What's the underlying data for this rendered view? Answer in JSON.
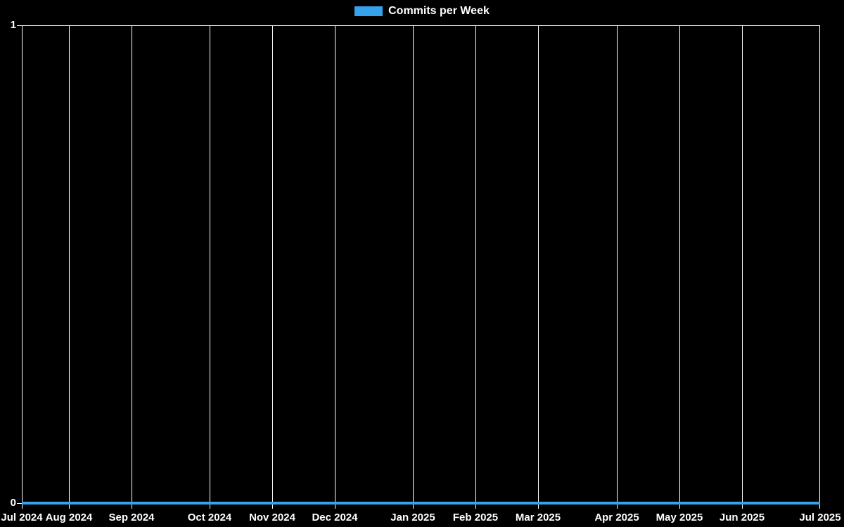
{
  "legend": {
    "label": "Commits per Week",
    "swatch_color": "#36A2EB"
  },
  "chart_data": {
    "type": "line",
    "title": "",
    "xlabel": "",
    "ylabel": "",
    "ylim": [
      0,
      1
    ],
    "y_ticks": [
      0,
      1
    ],
    "x_unit": "week",
    "total_week_intervals": 51,
    "x_ticks": [
      {
        "label": "Jul 2024",
        "week": 0
      },
      {
        "label": "Aug 2024",
        "week": 3
      },
      {
        "label": "Sep 2024",
        "week": 7
      },
      {
        "label": "Oct 2024",
        "week": 12
      },
      {
        "label": "Nov 2024",
        "week": 16
      },
      {
        "label": "Dec 2024",
        "week": 20
      },
      {
        "label": "Jan 2025",
        "week": 25
      },
      {
        "label": "Feb 2025",
        "week": 29
      },
      {
        "label": "Mar 2025",
        "week": 33
      },
      {
        "label": "Apr 2025",
        "week": 38
      },
      {
        "label": "May 2025",
        "week": 42
      },
      {
        "label": "Jun 2025",
        "week": 46
      },
      {
        "label": "Jul 2025",
        "week": 51
      }
    ],
    "series": [
      {
        "name": "Commits per Week",
        "color": "#36A2EB",
        "values": [
          0,
          0,
          0,
          0,
          0,
          0,
          0,
          0,
          0,
          0,
          0,
          0,
          0,
          0,
          0,
          0,
          0,
          0,
          0,
          0,
          0,
          0,
          0,
          0,
          0,
          0,
          0,
          0,
          0,
          0,
          0,
          0,
          0,
          0,
          0,
          0,
          0,
          0,
          0,
          0,
          0,
          0,
          0,
          0,
          0,
          0,
          0,
          0,
          0,
          0,
          0,
          0
        ]
      }
    ],
    "legend_position": "top",
    "grid": "vertical-only",
    "background_color": "#000000",
    "grid_color": "#ffffff",
    "text_color": "#ffffff"
  }
}
